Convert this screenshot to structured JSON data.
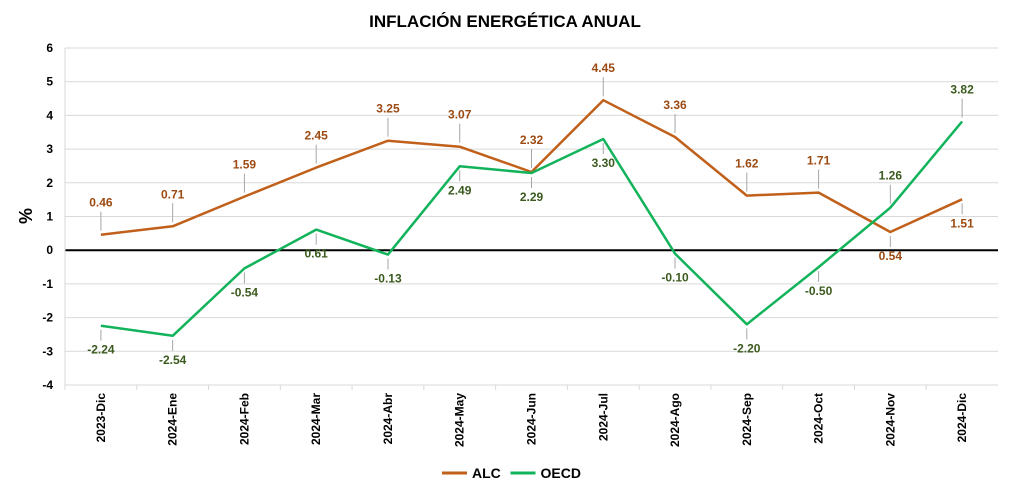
{
  "chart_data": {
    "type": "line",
    "title": "INFLACIÓN ENERGÉTICA ANUAL",
    "xlabel": "",
    "ylabel": "%",
    "ylim": [
      -4,
      6
    ],
    "yticks": [
      "6",
      "5",
      "4",
      "3",
      "2",
      "1",
      "0",
      "-1",
      "-2",
      "-3",
      "-4"
    ],
    "grid": "horizontal",
    "legend_position": "bottom",
    "categories": [
      "2023-Dic",
      "2024-Ene",
      "2024-Feb",
      "2024-Mar",
      "2024-Abr",
      "2024-May",
      "2024-Jun",
      "2024-Jul",
      "2024-Ago",
      "2024-Sep",
      "2024-Oct",
      "2024-Nov",
      "2024-Dic"
    ],
    "series": [
      {
        "name": "ALC",
        "color": "#c0601a",
        "label_color": "#9c4a12",
        "values": [
          0.46,
          0.71,
          1.59,
          2.45,
          3.25,
          3.07,
          2.32,
          4.45,
          3.36,
          1.62,
          1.71,
          0.54,
          1.51
        ],
        "labels": [
          "0.46",
          "0.71",
          "1.59",
          "2.45",
          "3.25",
          "3.07",
          "2.32",
          "4.45",
          "3.36",
          "1.62",
          "1.71",
          "0.54",
          "1.51"
        ]
      },
      {
        "name": "OECD",
        "color": "#12b35a",
        "label_color": "#3b5a1e",
        "values": [
          -2.24,
          -2.54,
          -0.54,
          0.61,
          -0.13,
          2.49,
          2.29,
          3.3,
          -0.1,
          -2.2,
          -0.5,
          1.26,
          3.82
        ],
        "labels": [
          "-2.24",
          "-2.54",
          "-0.54",
          "0.61",
          "-0.13",
          "2.49",
          "2.29",
          "3.30",
          "-0.10",
          "-2.20",
          "-0.50",
          "1.26",
          "3.82"
        ]
      }
    ]
  }
}
